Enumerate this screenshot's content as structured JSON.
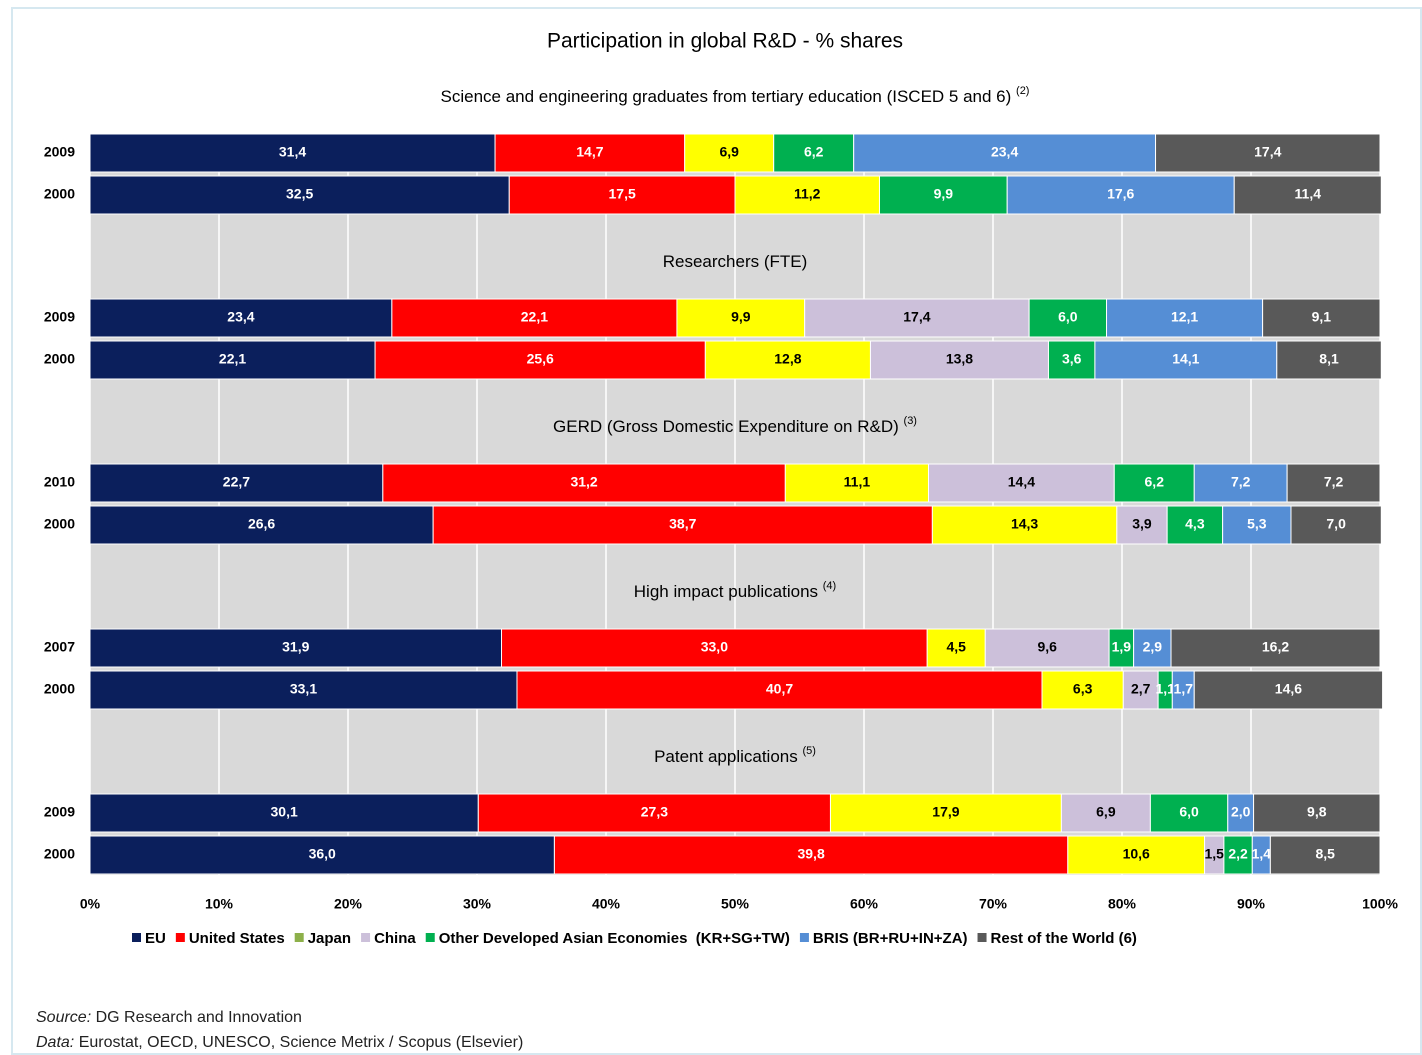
{
  "chart_data": {
    "type": "bar",
    "orientation": "horizontal",
    "stacked": true,
    "title": "Participation in global R&D - % shares",
    "xlim": [
      0,
      100
    ],
    "xticks": [
      {
        "value": 0,
        "label": "0%"
      },
      {
        "value": 10,
        "label": "10%"
      },
      {
        "value": 20,
        "label": "20%"
      },
      {
        "value": 30,
        "label": "30%"
      },
      {
        "value": 40,
        "label": "40%"
      },
      {
        "value": 50,
        "label": "50%"
      },
      {
        "value": 60,
        "label": "60%"
      },
      {
        "value": 70,
        "label": "70%"
      },
      {
        "value": 80,
        "label": "80%"
      },
      {
        "value": 90,
        "label": "90%"
      },
      {
        "value": 100,
        "label": "100%"
      }
    ],
    "grid": true,
    "legend": "bottom",
    "series": [
      {
        "name": "EU",
        "color": "#0b1f5c",
        "legend_color": "#0b1f5c"
      },
      {
        "name": "United States",
        "color": "#ff0000",
        "legend_color": "#ff0000"
      },
      {
        "name": "Japan",
        "color": "#ffff00",
        "legend_color": "#8db04a"
      },
      {
        "name": "China",
        "color": "#ccc0da",
        "legend_color": "#ccc0da"
      },
      {
        "name": "Other Developed Asian Economies  (KR+SG+TW)",
        "color": "#00b050",
        "legend_color": "#00b050"
      },
      {
        "name": "BRIS (BR+RU+IN+ZA)",
        "color": "#558ed5",
        "legend_color": "#558ed5"
      },
      {
        "name": "Rest of the World (6)",
        "color": "#595959",
        "legend_color": "#595959"
      }
    ],
    "panels": [
      {
        "title": "Science and engineering graduates from tertiary education (ISCED 5 and 6)",
        "note": "(2)",
        "categories": [
          "2009",
          "2000"
        ],
        "series": [
          {
            "values": [
              31.4,
              32.5
            ],
            "value_labels": [
              "31,4",
              "32,5"
            ]
          },
          {
            "values": [
              14.7,
              17.5
            ],
            "value_labels": [
              "14,7",
              "17,5"
            ]
          },
          {
            "values": [
              6.9,
              11.2
            ],
            "value_labels": [
              "6,9",
              "11,2"
            ]
          },
          {
            "values": [
              null,
              null
            ],
            "value_labels": [
              null,
              null
            ]
          },
          {
            "values": [
              6.2,
              9.9
            ],
            "value_labels": [
              "6,2",
              "9,9"
            ]
          },
          {
            "values": [
              23.4,
              17.6
            ],
            "value_labels": [
              "23,4",
              "17,6"
            ]
          },
          {
            "values": [
              17.4,
              11.4
            ],
            "value_labels": [
              "17,4",
              "11,4"
            ]
          }
        ]
      },
      {
        "title": "Researchers (FTE)",
        "categories": [
          "2009",
          "2000"
        ],
        "series": [
          {
            "values": [
              23.4,
              22.1
            ],
            "value_labels": [
              "23,4",
              "22,1"
            ]
          },
          {
            "values": [
              22.1,
              25.6
            ],
            "value_labels": [
              "22,1",
              "25,6"
            ]
          },
          {
            "values": [
              9.9,
              12.8
            ],
            "value_labels": [
              "9,9",
              "12,8"
            ]
          },
          {
            "values": [
              17.4,
              13.8
            ],
            "value_labels": [
              "17,4",
              "13,8"
            ]
          },
          {
            "values": [
              6.0,
              3.6
            ],
            "value_labels": [
              "6,0",
              "3,6"
            ]
          },
          {
            "values": [
              12.1,
              14.1
            ],
            "value_labels": [
              "12,1",
              "14,1"
            ]
          },
          {
            "values": [
              9.1,
              8.1
            ],
            "value_labels": [
              "9,1",
              "8,1"
            ]
          }
        ]
      },
      {
        "title": "GERD (Gross Domestic Expenditure on R&D)",
        "note": "(3)",
        "categories": [
          "2010",
          "2000"
        ],
        "series": [
          {
            "values": [
              22.7,
              26.6
            ],
            "value_labels": [
              "22,7",
              "26,6"
            ]
          },
          {
            "values": [
              31.2,
              38.7
            ],
            "value_labels": [
              "31,2",
              "38,7"
            ]
          },
          {
            "values": [
              11.1,
              14.3
            ],
            "value_labels": [
              "11,1",
              "14,3"
            ]
          },
          {
            "values": [
              14.4,
              3.9
            ],
            "value_labels": [
              "14,4",
              "3,9"
            ]
          },
          {
            "values": [
              6.2,
              4.3
            ],
            "value_labels": [
              "6,2",
              "4,3"
            ]
          },
          {
            "values": [
              7.2,
              5.3
            ],
            "value_labels": [
              "7,2",
              "5,3"
            ]
          },
          {
            "values": [
              7.2,
              7.0
            ],
            "value_labels": [
              "7,2",
              "7,0"
            ]
          }
        ]
      },
      {
        "title": "High impact publications",
        "note": "(4)",
        "categories": [
          "2007",
          "2000"
        ],
        "series": [
          {
            "values": [
              31.9,
              33.1
            ],
            "value_labels": [
              "31,9",
              "33,1"
            ]
          },
          {
            "values": [
              33.0,
              40.7
            ],
            "value_labels": [
              "33,0",
              "40,7"
            ]
          },
          {
            "values": [
              4.5,
              6.3
            ],
            "value_labels": [
              "4,5",
              "6,3"
            ]
          },
          {
            "values": [
              9.6,
              2.7
            ],
            "value_labels": [
              "9,6",
              "2,7"
            ]
          },
          {
            "values": [
              1.9,
              1.1
            ],
            "value_labels": [
              "1,9",
              "1,1"
            ]
          },
          {
            "values": [
              2.9,
              1.7
            ],
            "value_labels": [
              "2,9",
              "1,7"
            ]
          },
          {
            "values": [
              16.2,
              14.6
            ],
            "value_labels": [
              "16,2",
              "14,6"
            ]
          }
        ]
      },
      {
        "title": "Patent applications",
        "note": "(5)",
        "categories": [
          "2009",
          "2000"
        ],
        "series": [
          {
            "values": [
              30.1,
              36.0
            ],
            "value_labels": [
              "30,1",
              "36,0"
            ]
          },
          {
            "values": [
              27.3,
              39.8
            ],
            "value_labels": [
              "27,3",
              "39,8"
            ]
          },
          {
            "values": [
              17.9,
              10.6
            ],
            "value_labels": [
              "17,9",
              "10,6"
            ]
          },
          {
            "values": [
              6.9,
              1.5
            ],
            "value_labels": [
              "6,9",
              "1,5"
            ]
          },
          {
            "values": [
              6.0,
              2.2
            ],
            "value_labels": [
              "6,0",
              "2,2"
            ]
          },
          {
            "values": [
              2.0,
              1.4
            ],
            "value_labels": [
              "2,0",
              "1,4"
            ]
          },
          {
            "values": [
              9.8,
              8.5
            ],
            "value_labels": [
              "9,8",
              "8,5"
            ]
          }
        ]
      }
    ],
    "notes": [
      {
        "label": "Source:",
        "text": "DG Research and Innovation"
      },
      {
        "label": "Data:",
        "text": "Eurostat, OECD, UNESCO, Science Metrix / Scopus (Elsevier)"
      }
    ]
  }
}
